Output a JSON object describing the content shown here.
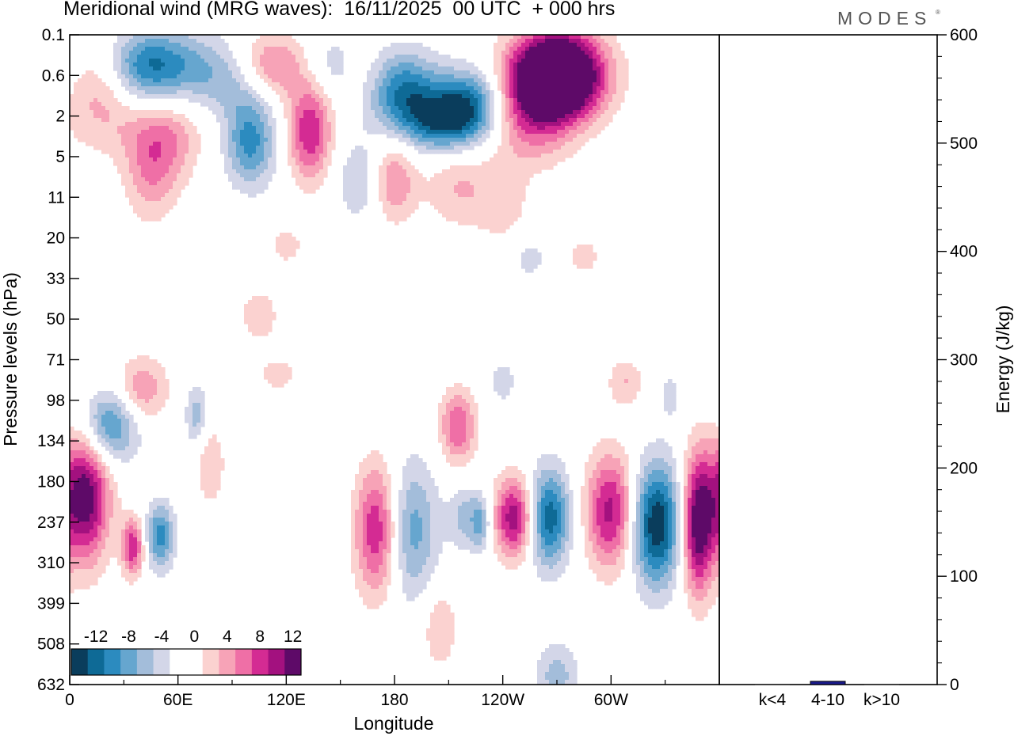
{
  "header": {
    "title": "Meridional wind (MRG waves):  16/11/2025  00 UTC  + 000 hrs",
    "brand": "MODES",
    "brand_mark": "®"
  },
  "chart_data": [
    {
      "type": "heatmap",
      "title": "Meridional wind (MRG waves):  16/11/2025  00 UTC  + 000 hrs",
      "xlabel": "Longitude",
      "ylabel": "Pressure levels (hPa)",
      "x_ticks": [
        "0",
        "60E",
        "120E",
        "180",
        "120W",
        "60W"
      ],
      "y_ticks": [
        "0.1",
        "0.6",
        "2",
        "5",
        "11",
        "20",
        "33",
        "50",
        "71",
        "98",
        "134",
        "180",
        "237",
        "310",
        "399",
        "508",
        "632"
      ],
      "colorbar": {
        "labels": [
          "-12",
          "-8",
          "-4",
          "0",
          "4",
          "8",
          "12"
        ],
        "colors": [
          "#0a3d5c",
          "#0e6a96",
          "#2c8bbf",
          "#66a6cf",
          "#a3bdda",
          "#d3d6e8",
          "#ffffff",
          "#ffffff",
          "#fbd2d0",
          "#f7a3b7",
          "#ef6fa6",
          "#d42b93",
          "#a3117f",
          "#5e0a68"
        ]
      },
      "blobs": [
        {
          "lon": 18,
          "lev": 0.6,
          "w": 20,
          "h": 1.1,
          "v": 9
        },
        {
          "lon": 40,
          "lev": 0.4,
          "w": 35,
          "h": 0.9,
          "v": -12
        },
        {
          "lon": 90,
          "lev": 0.6,
          "w": 20,
          "h": 0.9,
          "v": -6
        },
        {
          "lon": 110,
          "lev": 0.4,
          "w": 25,
          "h": 0.8,
          "v": 8
        },
        {
          "lon": 145,
          "lev": 0.4,
          "w": 20,
          "h": 0.8,
          "v": -5
        },
        {
          "lon": 160,
          "lev": 0.5,
          "w": 15,
          "h": 0.8,
          "v": 3
        },
        {
          "lon": 185,
          "lev": 1.0,
          "w": 20,
          "h": 1.0,
          "v": -10
        },
        {
          "lon": 222,
          "lev": 1.5,
          "w": 20,
          "h": 0.9,
          "v": -11
        },
        {
          "lon": 205,
          "lev": 2.3,
          "w": 20,
          "h": 0.7,
          "v": -8
        },
        {
          "lon": 270,
          "lev": 0.35,
          "w": 25,
          "h": 1.0,
          "v": 13
        },
        {
          "lon": 270,
          "lev": 0.8,
          "w": 25,
          "h": 0.9,
          "v": 13
        },
        {
          "lon": 255,
          "lev": 2.2,
          "w": 25,
          "h": 1.1,
          "v": 7
        },
        {
          "lon": 100,
          "lev": 3.5,
          "w": 14,
          "h": 1.1,
          "v": -9
        },
        {
          "lon": 133,
          "lev": 2.8,
          "w": 12,
          "h": 1.2,
          "v": 10
        },
        {
          "lon": 55,
          "lev": 3.3,
          "w": 18,
          "h": 1.1,
          "v": 4
        },
        {
          "lon": 45,
          "lev": 7.0,
          "w": 15,
          "h": 1.2,
          "v": 5
        },
        {
          "lon": 160,
          "lev": 8.0,
          "w": 12,
          "h": 1.0,
          "v": -4
        },
        {
          "lon": 180,
          "lev": 8.0,
          "w": 12,
          "h": 1.0,
          "v": 6
        },
        {
          "lon": 215,
          "lev": 9.0,
          "w": 18,
          "h": 1.0,
          "v": 4
        },
        {
          "lon": 240,
          "lev": 12.0,
          "w": 15,
          "h": 1.0,
          "v": 3
        },
        {
          "lon": 30,
          "lev": 3.0,
          "w": 40,
          "h": 0.8,
          "v": 2
        },
        {
          "lon": 8,
          "lev": 200,
          "w": 14,
          "h": 1.6,
          "v": 14
        },
        {
          "lon": 22,
          "lev": 120,
          "w": 16,
          "h": 0.9,
          "v": -9
        },
        {
          "lon": 35,
          "lev": 280,
          "w": 6,
          "h": 0.7,
          "v": 10
        },
        {
          "lon": 50,
          "lev": 260,
          "w": 8,
          "h": 0.8,
          "v": -9
        },
        {
          "lon": 40,
          "lev": 90,
          "w": 14,
          "h": 0.8,
          "v": 6
        },
        {
          "lon": 70,
          "lev": 110,
          "w": 6,
          "h": 0.8,
          "v": -5
        },
        {
          "lon": 78,
          "lev": 160,
          "w": 8,
          "h": 1.0,
          "v": 4
        },
        {
          "lon": 100,
          "lev": 110,
          "w": 10,
          "h": 0.8,
          "v": -2
        },
        {
          "lon": 170,
          "lev": 250,
          "w": 12,
          "h": 1.6,
          "v": 10
        },
        {
          "lon": 190,
          "lev": 250,
          "w": 14,
          "h": 1.7,
          "v": -7
        },
        {
          "lon": 215,
          "lev": 120,
          "w": 10,
          "h": 0.9,
          "v": 8
        },
        {
          "lon": 220,
          "lev": 230,
          "w": 10,
          "h": 0.8,
          "v": -5
        },
        {
          "lon": 228,
          "lev": 240,
          "w": 5,
          "h": 0.7,
          "v": -5
        },
        {
          "lon": 205,
          "lev": 460,
          "w": 10,
          "h": 1.0,
          "v": 4
        },
        {
          "lon": 247,
          "lev": 230,
          "w": 12,
          "h": 1.0,
          "v": 12
        },
        {
          "lon": 265,
          "lev": 230,
          "w": 12,
          "h": 1.2,
          "v": -12
        },
        {
          "lon": 270,
          "lev": 600,
          "w": 12,
          "h": 0.8,
          "v": -5
        },
        {
          "lon": 300,
          "lev": 220,
          "w": 14,
          "h": 1.4,
          "v": 11
        },
        {
          "lon": 325,
          "lev": 240,
          "w": 14,
          "h": 1.5,
          "v": -14
        },
        {
          "lon": 348,
          "lev": 240,
          "w": 9,
          "h": 1.7,
          "v": 14
        },
        {
          "lon": 333,
          "lev": 95,
          "w": 6,
          "h": 0.6,
          "v": -3
        },
        {
          "lon": 308,
          "lev": 85,
          "w": 10,
          "h": 0.6,
          "v": 4
        },
        {
          "lon": 240,
          "lev": 85,
          "w": 8,
          "h": 0.6,
          "v": -3
        },
        {
          "lon": 282,
          "lev": 85,
          "w": 8,
          "h": 0.6,
          "v": -2
        },
        {
          "lon": 115,
          "lev": 80,
          "w": 12,
          "h": 0.5,
          "v": 3
        },
        {
          "lon": 105,
          "lev": 48,
          "w": 10,
          "h": 0.6,
          "v": 4
        },
        {
          "lon": 65,
          "lev": 45,
          "w": 10,
          "h": 0.6,
          "v": -2
        },
        {
          "lon": 120,
          "lev": 22,
          "w": 10,
          "h": 0.5,
          "v": 3
        },
        {
          "lon": 255,
          "lev": 26,
          "w": 10,
          "h": 0.5,
          "v": -3
        },
        {
          "lon": 285,
          "lev": 25,
          "w": 10,
          "h": 0.5,
          "v": 3
        }
      ]
    },
    {
      "type": "bar",
      "categories": [
        "k<4",
        "4-10",
        "k>10"
      ],
      "values": [
        0,
        3,
        0
      ],
      "ylabel": "Energy (J/kg)",
      "ylim": [
        0,
        600
      ],
      "y_ticks": [
        "0",
        "100",
        "200",
        "300",
        "400",
        "500",
        "600"
      ],
      "bar_color": "#1a1a8c"
    }
  ]
}
